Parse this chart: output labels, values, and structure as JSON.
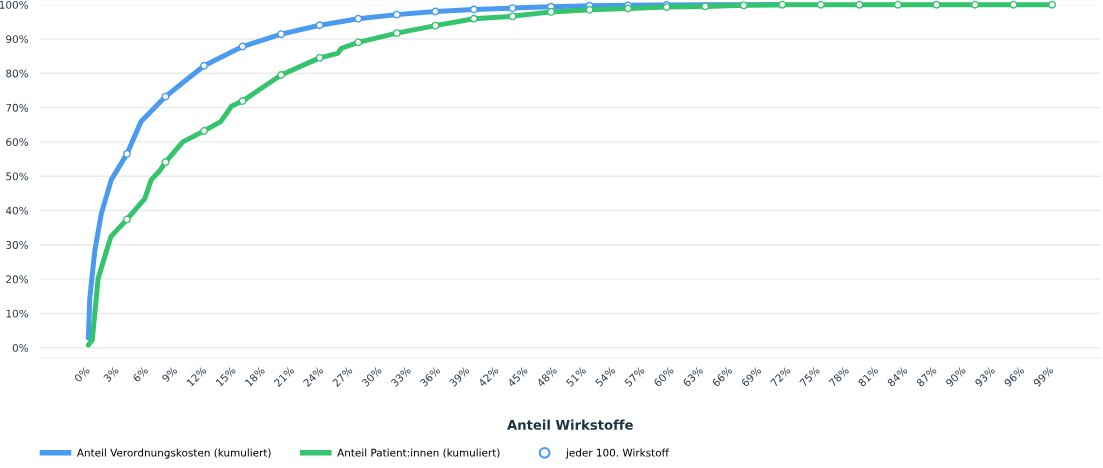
{
  "chart_data": {
    "type": "line",
    "xlabel": "Anteil Wirkstoffe",
    "xlim": [
      -5,
      104
    ],
    "xticks": [
      {
        "value": 0,
        "label": "0%"
      },
      {
        "value": 3,
        "label": "3%"
      },
      {
        "value": 6,
        "label": "6%"
      },
      {
        "value": 9,
        "label": "9%"
      },
      {
        "value": 12,
        "label": "12%"
      },
      {
        "value": 15,
        "label": "15%"
      },
      {
        "value": 18,
        "label": "18%"
      },
      {
        "value": 21,
        "label": "21%"
      },
      {
        "value": 24,
        "label": "24%"
      },
      {
        "value": 27,
        "label": "27%"
      },
      {
        "value": 30,
        "label": "30%"
      },
      {
        "value": 33,
        "label": "33%"
      },
      {
        "value": 36,
        "label": "36%"
      },
      {
        "value": 39,
        "label": "39%"
      },
      {
        "value": 42,
        "label": "42%"
      },
      {
        "value": 45,
        "label": "45%"
      },
      {
        "value": 48,
        "label": "48%"
      },
      {
        "value": 51,
        "label": "51%"
      },
      {
        "value": 54,
        "label": "54%"
      },
      {
        "value": 57,
        "label": "57%"
      },
      {
        "value": 60,
        "label": "60%"
      },
      {
        "value": 63,
        "label": "63%"
      },
      {
        "value": 66,
        "label": "66%"
      },
      {
        "value": 69,
        "label": "69%"
      },
      {
        "value": 72,
        "label": "72%"
      },
      {
        "value": 75,
        "label": "75%"
      },
      {
        "value": 78,
        "label": "78%"
      },
      {
        "value": 81,
        "label": "81%"
      },
      {
        "value": 84,
        "label": "84%"
      },
      {
        "value": 87,
        "label": "87%"
      },
      {
        "value": 90,
        "label": "90%"
      },
      {
        "value": 93,
        "label": "93%"
      },
      {
        "value": 96,
        "label": "96%"
      },
      {
        "value": 99,
        "label": "99%"
      }
    ],
    "ylim": [
      -3,
      100
    ],
    "yticks": [
      {
        "value": 0,
        "label": "0%"
      },
      {
        "value": 10,
        "label": "10%"
      },
      {
        "value": 20,
        "label": "20%"
      },
      {
        "value": 30,
        "label": "30%"
      },
      {
        "value": 40,
        "label": "40%"
      },
      {
        "value": 50,
        "label": "50%"
      },
      {
        "value": 60,
        "label": "60%"
      },
      {
        "value": 70,
        "label": "70%"
      },
      {
        "value": 80,
        "label": "80%"
      },
      {
        "value": 90,
        "label": "90%"
      },
      {
        "value": 100,
        "label": "100%"
      }
    ],
    "grid": "y",
    "legend": "bottom",
    "marker": "none",
    "line_style": "solid",
    "series": [
      {
        "name": "Anteil Verordnungskosten (kumuliert)",
        "color": "#4a9af0",
        "x": [
          0,
          0.14,
          0.65,
          1.33,
          2.36,
          3.96,
          5.4,
          7.92,
          9.5,
          11.88,
          15.84,
          19.8,
          23.76,
          27.72,
          31.68,
          35.64,
          39.6,
          43.56,
          47.52,
          51.48,
          55.44,
          59.4,
          63.36,
          67.32,
          71.28
        ],
        "values": [
          2.8,
          14.2,
          28.1,
          39.1,
          49,
          56.5,
          65.9,
          73.2,
          76.8,
          82.2,
          87.8,
          91.4,
          94.0,
          95.9,
          97.1,
          98.0,
          98.6,
          99.0,
          99.4,
          99.7,
          99.8,
          99.9,
          100,
          100,
          100
        ]
      },
      {
        "name": "Anteil Patient:innen (kumuliert)",
        "color": "#34c46d",
        "x": [
          0,
          0.4,
          1.0,
          1.85,
          2.3,
          3.2,
          3.96,
          5.8,
          6.46,
          7.3,
          7.92,
          9.7,
          11.88,
          13.6,
          14.7,
          15.84,
          19.8,
          23.76,
          25.6,
          26.0,
          27.72,
          31.68,
          35.64,
          39.6,
          43.56,
          47.52,
          51.48,
          55.44,
          59.4,
          63.36,
          67.32,
          71.28,
          75.24,
          79.2,
          83.16,
          87.12,
          91.08,
          95.04,
          99.0
        ],
        "values": [
          0.8,
          2.3,
          20.2,
          28.1,
          32.3,
          35.1,
          37.4,
          43.5,
          49,
          51.5,
          54.1,
          60,
          63.2,
          65.9,
          70.4,
          71.9,
          79.5,
          84.5,
          85.8,
          87.3,
          89.0,
          91.7,
          93.9,
          95.9,
          96.6,
          97.9,
          98.5,
          98.9,
          99.3,
          99.5,
          99.8,
          100,
          100,
          100,
          100,
          100,
          100,
          100,
          100
        ]
      },
      {
        "name": "jeder 100. Wirkstoff",
        "type": "scatter",
        "marker": "circle",
        "color": "#4a9af0",
        "x": [
          3.96,
          7.92,
          11.88,
          15.84,
          19.8,
          23.76,
          27.72,
          31.68,
          35.64,
          39.6,
          43.56,
          47.52,
          51.48,
          55.44,
          59.4,
          3.96,
          7.92,
          11.88,
          15.84,
          19.8,
          23.76,
          27.72,
          31.68,
          35.64,
          39.6,
          43.56,
          47.52,
          51.48,
          55.44,
          59.4,
          63.36,
          67.32,
          71.28,
          75.24,
          79.2,
          83.16,
          87.12,
          91.08,
          95.04,
          99.0
        ],
        "values": [
          56.5,
          73.2,
          82.2,
          87.8,
          91.4,
          94.0,
          95.9,
          97.1,
          98.0,
          98.6,
          99.0,
          99.4,
          99.7,
          99.8,
          99.9,
          37.4,
          54.1,
          63.2,
          71.9,
          79.5,
          84.5,
          89.0,
          91.7,
          93.9,
          95.9,
          96.6,
          97.9,
          98.5,
          98.9,
          99.3,
          99.5,
          99.8,
          100,
          100,
          100,
          100,
          100,
          100,
          100,
          100
        ],
        "colors": [
          "#4a9af0",
          "#4a9af0",
          "#4a9af0",
          "#4a9af0",
          "#4a9af0",
          "#4a9af0",
          "#4a9af0",
          "#4a9af0",
          "#4a9af0",
          "#4a9af0",
          "#4a9af0",
          "#4a9af0",
          "#4a9af0",
          "#4a9af0",
          "#4a9af0",
          "#34c46d",
          "#34c46d",
          "#34c46d",
          "#34c46d",
          "#34c46d",
          "#34c46d",
          "#34c46d",
          "#34c46d",
          "#34c46d",
          "#34c46d",
          "#34c46d",
          "#34c46d",
          "#34c46d",
          "#34c46d",
          "#34c46d",
          "#34c46d",
          "#34c46d",
          "#34c46d",
          "#34c46d",
          "#34c46d",
          "#34c46d",
          "#34c46d",
          "#34c46d",
          "#34c46d",
          "#34c46d"
        ]
      }
    ]
  }
}
